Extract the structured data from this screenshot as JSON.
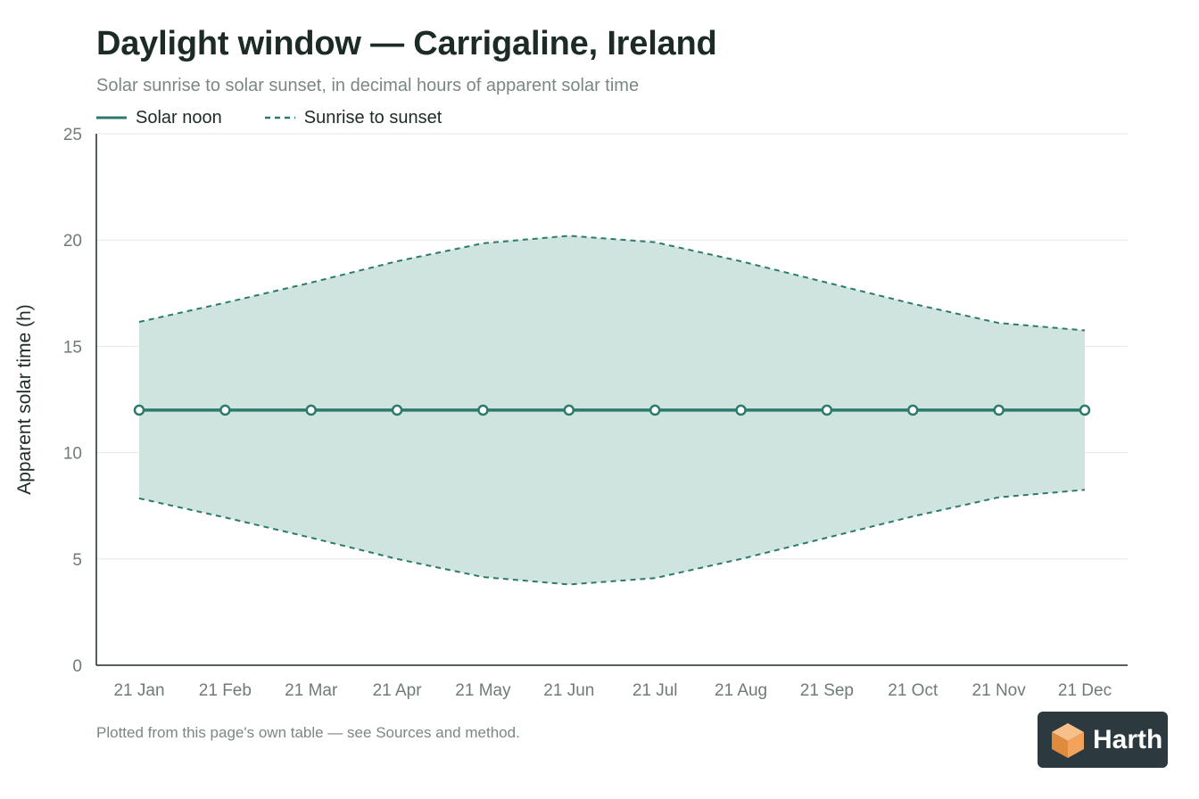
{
  "header": {
    "title": "Daylight window — Carrigaline, Ireland",
    "subtitle": "Solar sunrise to solar sunset, in decimal hours of apparent solar time"
  },
  "legend": {
    "items": [
      {
        "label": "Solar noon",
        "style": "solid"
      },
      {
        "label": "Sunrise to sunset",
        "style": "dashed"
      }
    ]
  },
  "footer": {
    "note": "Plotted from this page's own table — see Sources and method."
  },
  "brand": {
    "name": "Harth",
    "icon": "cube-logo-icon"
  },
  "colors": {
    "accent": "#2b7a6c",
    "band_fill": "#cfe4df",
    "grid": "#e6e9e8",
    "axis": "#1c2b27",
    "logo_bg": "#2c3a40",
    "logo_orange": "#f2a25a"
  },
  "chart_data": {
    "type": "area",
    "title": "Daylight window — Carrigaline, Ireland",
    "subtitle": "Solar sunrise to solar sunset, in decimal hours of apparent solar time",
    "xlabel": "",
    "ylabel": "Apparent solar time (h)",
    "categories": [
      "21 Jan",
      "21 Feb",
      "21 Mar",
      "21 Apr",
      "21 May",
      "21 Jun",
      "21 Jul",
      "21 Aug",
      "21 Sep",
      "21 Oct",
      "21 Nov",
      "21 Dec"
    ],
    "ylim": [
      0,
      25
    ],
    "yticks": [
      0,
      5,
      10,
      15,
      20,
      25
    ],
    "grid": true,
    "legend_position": "top-left",
    "series": [
      {
        "name": "Solar noon",
        "type": "line",
        "values": [
          12,
          12,
          12,
          12,
          12,
          12,
          12,
          12,
          12,
          12,
          12,
          12
        ]
      },
      {
        "name": "Sunrise to sunset",
        "type": "band",
        "lower": [
          7.85,
          6.95,
          6.0,
          5.0,
          4.15,
          3.8,
          4.1,
          5.0,
          6.0,
          7.0,
          7.9,
          8.25
        ],
        "upper": [
          16.15,
          17.05,
          18.0,
          19.0,
          19.85,
          20.2,
          19.9,
          19.0,
          18.0,
          17.0,
          16.1,
          15.75
        ]
      }
    ]
  }
}
